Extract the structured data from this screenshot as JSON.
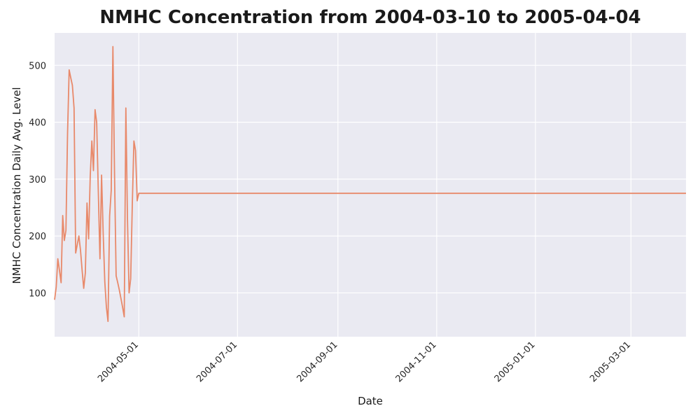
{
  "chart_data": {
    "type": "line",
    "title": "NMHC Concentration from 2004-03-10 to 2005-04-04",
    "xlabel": "Date",
    "ylabel": "NMHC Concentration Daily Avg. Level",
    "xlim": [
      "2004-03-10",
      "2005-04-04"
    ],
    "ylim": [
      23,
      557
    ],
    "grid": true,
    "colors": {
      "line": "#e8896a",
      "plot_bg": "#eaeaf2",
      "grid": "#ffffff"
    },
    "x_ticks": [
      "2004-05-01",
      "2004-07-01",
      "2004-09-01",
      "2004-11-01",
      "2005-01-01",
      "2005-03-01"
    ],
    "y_ticks": [
      100,
      200,
      300,
      400,
      500
    ],
    "series": [
      {
        "x": [
          "2004-03-10",
          "2004-03-11",
          "2004-03-12",
          "2004-03-13",
          "2004-03-14",
          "2004-03-15",
          "2004-03-16",
          "2004-03-17",
          "2004-03-18",
          "2004-03-19",
          "2004-03-20",
          "2004-03-21",
          "2004-03-22",
          "2004-03-23",
          "2004-03-24",
          "2004-03-25",
          "2004-03-26",
          "2004-03-27",
          "2004-03-28",
          "2004-03-29",
          "2004-03-30",
          "2004-03-31",
          "2004-04-01",
          "2004-04-02",
          "2004-04-03",
          "2004-04-04",
          "2004-04-05",
          "2004-04-06",
          "2004-04-07",
          "2004-04-08",
          "2004-04-09",
          "2004-04-10",
          "2004-04-11",
          "2004-04-12",
          "2004-04-13",
          "2004-04-14",
          "2004-04-15",
          "2004-04-16",
          "2004-04-17",
          "2004-04-18",
          "2004-04-19",
          "2004-04-20",
          "2004-04-21",
          "2004-04-22",
          "2004-04-23",
          "2004-04-24",
          "2004-04-25",
          "2004-04-26",
          "2004-04-27",
          "2004-04-28",
          "2004-04-29",
          "2004-04-30",
          "2004-05-01",
          "2005-04-04"
        ],
        "values": [
          88,
          110,
          160,
          140,
          118,
          236,
          192,
          210,
          380,
          492,
          478,
          465,
          425,
          170,
          185,
          200,
          175,
          140,
          108,
          135,
          258,
          195,
          305,
          367,
          315,
          422,
          400,
          280,
          160,
          307,
          205,
          120,
          75,
          50,
          235,
          280,
          533,
          310,
          130,
          118,
          105,
          90,
          75,
          58,
          425,
          230,
          100,
          125,
          255,
          367,
          350,
          262,
          275,
          275
        ]
      }
    ]
  }
}
